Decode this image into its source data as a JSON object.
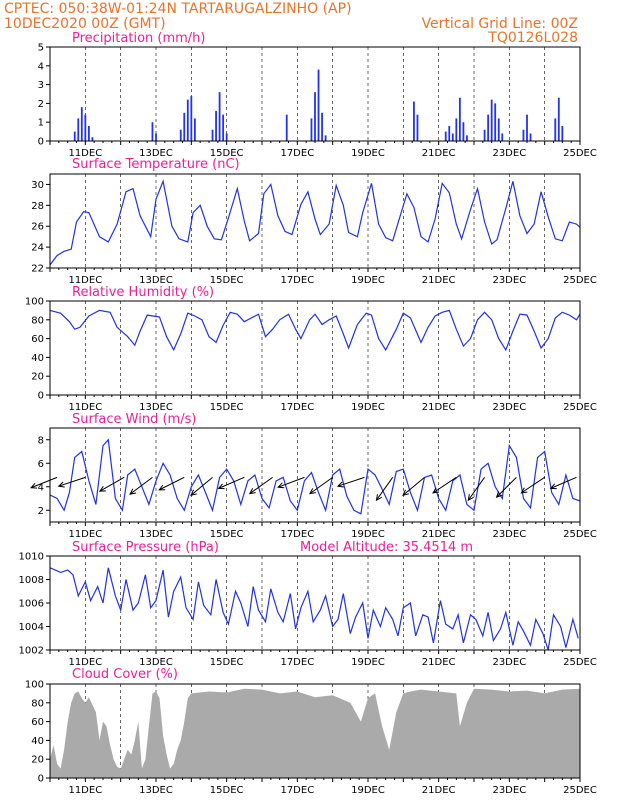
{
  "header": {
    "line1_left": "CPTEC:   050:38W-01:24N   TARTARUGALZINHO (AP)",
    "line2_left": "10DEC2020 00Z (GMT)",
    "line2_right": "Vertical Grid Line: 00Z",
    "line3_right": "TQ0126L028"
  },
  "colors": {
    "header": "#e8732a",
    "title": "#e8209a",
    "line": "#2233dd",
    "bar": "#2233ee",
    "cloud": "#aaaaaa"
  },
  "chart_data": [
    {
      "type": "bar",
      "title": "Precipitation (mm/h)",
      "ylim": [
        0,
        5
      ],
      "yticks": [
        0,
        1,
        2,
        3,
        4,
        5
      ],
      "xticks": [
        "11DEC",
        "13DEC",
        "15DEC",
        "17DEC",
        "19DEC",
        "21DEC",
        "23DEC",
        "25DEC"
      ],
      "x_days": [
        0.7,
        0.8,
        0.9,
        1.0,
        1.1,
        1.2,
        2.9,
        3.0,
        3.7,
        3.8,
        3.9,
        4.0,
        4.1,
        4.6,
        4.7,
        4.8,
        4.9,
        5.0,
        6.7,
        7.4,
        7.5,
        7.6,
        7.7,
        7.8,
        10.3,
        10.4,
        11.2,
        11.3,
        11.4,
        11.5,
        11.6,
        11.7,
        11.8,
        12.3,
        12.4,
        12.5,
        12.6,
        12.7,
        12.8,
        13.4,
        13.5,
        13.6,
        14.3,
        14.4,
        14.5
      ],
      "values": [
        0.5,
        1.2,
        1.8,
        1.4,
        0.8,
        0.2,
        1.0,
        0.4,
        0.6,
        1.5,
        2.2,
        2.4,
        1.2,
        0.6,
        1.6,
        2.6,
        1.4,
        0.4,
        1.4,
        1.2,
        2.6,
        3.8,
        1.5,
        0.3,
        2.1,
        1.4,
        0.5,
        0.8,
        0.4,
        1.2,
        2.3,
        1.0,
        0.3,
        0.6,
        1.4,
        2.2,
        2.0,
        1.2,
        0.4,
        0.6,
        1.4,
        0.4,
        1.2,
        2.3,
        0.8
      ]
    },
    {
      "type": "line",
      "title": "Surface Temperature (nC)",
      "ylim": [
        22,
        31
      ],
      "yticks": [
        22,
        24,
        26,
        28,
        30
      ],
      "xticks": [
        "11DEC",
        "13DEC",
        "15DEC",
        "17DEC",
        "19DEC",
        "21DEC",
        "23DEC",
        "25DEC"
      ],
      "x_days": [
        0.0,
        0.2,
        0.4,
        0.6,
        0.75,
        0.95,
        1.1,
        1.4,
        1.65,
        1.9,
        2.15,
        2.35,
        2.55,
        2.85,
        3.0,
        3.2,
        3.45,
        3.65,
        3.9,
        4.05,
        4.25,
        4.45,
        4.65,
        4.85,
        5.05,
        5.3,
        5.5,
        5.65,
        5.9,
        6.05,
        6.25,
        6.45,
        6.65,
        6.85,
        7.1,
        7.3,
        7.5,
        7.65,
        7.9,
        8.1,
        8.3,
        8.45,
        8.7,
        8.85,
        9.1,
        9.3,
        9.5,
        9.7,
        9.85,
        10.1,
        10.3,
        10.5,
        10.7,
        10.9,
        11.1,
        11.3,
        11.5,
        11.65,
        11.9,
        12.1,
        12.3,
        12.5,
        12.65,
        12.9,
        13.1,
        13.3,
        13.5,
        13.7,
        13.9,
        14.1,
        14.3,
        14.5,
        14.7,
        14.9,
        15.0
      ],
      "values": [
        22.3,
        23.2,
        23.6,
        23.8,
        26.4,
        27.4,
        27.3,
        25.0,
        24.5,
        26.2,
        29.3,
        29.6,
        27.0,
        25.0,
        28.6,
        30.3,
        26.0,
        24.8,
        24.5,
        27.3,
        28.0,
        26.0,
        24.8,
        24.7,
        26.8,
        29.6,
        26.5,
        24.6,
        25.3,
        29.1,
        30.0,
        27.0,
        25.5,
        25.2,
        28.1,
        29.3,
        26.7,
        25.2,
        26.2,
        29.9,
        28.0,
        25.4,
        25.0,
        27.3,
        30.1,
        26.2,
        24.9,
        24.6,
        26.3,
        29.1,
        27.8,
        25.0,
        24.5,
        26.7,
        30.1,
        29.2,
        26.2,
        24.8,
        27.6,
        29.6,
        26.4,
        24.3,
        24.7,
        27.7,
        30.3,
        27.0,
        25.3,
        26.2,
        29.3,
        26.9,
        24.8,
        24.6,
        26.4,
        26.2,
        25.9
      ]
    },
    {
      "type": "line",
      "title": "Relative Humidity (%)",
      "ylim": [
        0,
        100
      ],
      "yticks": [
        0,
        20,
        40,
        60,
        80,
        100
      ],
      "xticks": [
        "11DEC",
        "13DEC",
        "15DEC",
        "17DEC",
        "19DEC",
        "21DEC",
        "23DEC",
        "25DEC"
      ],
      "x_days": [
        0.0,
        0.3,
        0.55,
        0.7,
        0.85,
        1.1,
        1.4,
        1.7,
        1.9,
        2.2,
        2.4,
        2.55,
        2.75,
        3.1,
        3.3,
        3.5,
        3.7,
        3.9,
        4.1,
        4.3,
        4.5,
        4.7,
        4.9,
        5.1,
        5.3,
        5.5,
        5.7,
        5.9,
        6.1,
        6.3,
        6.5,
        6.75,
        6.95,
        7.1,
        7.35,
        7.5,
        7.7,
        7.9,
        8.1,
        8.3,
        8.45,
        8.7,
        8.95,
        9.1,
        9.3,
        9.5,
        9.8,
        10.0,
        10.2,
        10.5,
        10.7,
        10.9,
        11.1,
        11.3,
        11.5,
        11.7,
        11.9,
        12.1,
        12.3,
        12.5,
        12.7,
        12.9,
        13.1,
        13.3,
        13.5,
        13.7,
        13.9,
        14.1,
        14.3,
        14.5,
        14.7,
        14.9,
        15.0
      ],
      "values": [
        90,
        87,
        78,
        70,
        72,
        84,
        90,
        88,
        72,
        62,
        53,
        68,
        85,
        83,
        62,
        48,
        65,
        87,
        84,
        80,
        62,
        56,
        74,
        88,
        86,
        78,
        82,
        86,
        62,
        70,
        80,
        86,
        70,
        60,
        80,
        86,
        75,
        80,
        84,
        65,
        50,
        75,
        87,
        85,
        60,
        48,
        70,
        87,
        82,
        56,
        72,
        84,
        88,
        90,
        70,
        52,
        60,
        80,
        88,
        80,
        60,
        48,
        68,
        86,
        85,
        68,
        50,
        60,
        82,
        88,
        85,
        80,
        86
      ]
    },
    {
      "type": "line",
      "title": "Surface Wind (m/s)",
      "ylim": [
        1,
        9
      ],
      "yticks": [
        2,
        4,
        6,
        8
      ],
      "xticks": [
        "11DEC",
        "13DEC",
        "15DEC",
        "17DEC",
        "19DEC",
        "21DEC",
        "23DEC",
        "25DEC"
      ],
      "x_days": [
        0.0,
        0.2,
        0.4,
        0.55,
        0.7,
        0.9,
        1.1,
        1.3,
        1.5,
        1.65,
        1.85,
        2.05,
        2.2,
        2.4,
        2.6,
        2.8,
        3.0,
        3.2,
        3.4,
        3.6,
        3.8,
        4.0,
        4.2,
        4.4,
        4.6,
        4.8,
        5.0,
        5.2,
        5.4,
        5.6,
        5.8,
        6.0,
        6.2,
        6.4,
        6.6,
        6.8,
        7.0,
        7.2,
        7.4,
        7.6,
        7.8,
        8.0,
        8.2,
        8.4,
        8.6,
        8.8,
        9.0,
        9.2,
        9.4,
        9.6,
        9.8,
        10.0,
        10.2,
        10.4,
        10.6,
        10.8,
        11.0,
        11.2,
        11.4,
        11.6,
        11.8,
        12.0,
        12.2,
        12.4,
        12.6,
        12.8,
        13.0,
        13.2,
        13.4,
        13.6,
        13.8,
        14.0,
        14.2,
        14.4,
        14.6,
        14.8,
        15.0
      ],
      "values": [
        3.3,
        3.0,
        2.0,
        3.5,
        6.5,
        7.0,
        4.5,
        2.5,
        7.5,
        8.0,
        3.0,
        2.0,
        5.0,
        5.5,
        4.0,
        2.5,
        4.5,
        6.0,
        5.0,
        3.0,
        2.0,
        4.0,
        5.0,
        3.5,
        2.0,
        4.8,
        5.5,
        4.5,
        2.5,
        4.5,
        5.0,
        3.0,
        2.2,
        4.5,
        4.8,
        2.8,
        2.0,
        4.5,
        5.2,
        3.5,
        2.0,
        5.0,
        5.5,
        3.2,
        2.0,
        1.7,
        5.5,
        5.0,
        3.8,
        2.5,
        5.3,
        5.5,
        3.5,
        2.0,
        4.8,
        5.0,
        3.0,
        2.0,
        4.5,
        5.0,
        2.5,
        2.0,
        5.5,
        6.0,
        4.0,
        3.0,
        7.5,
        6.5,
        3.0,
        2.2,
        6.5,
        7.0,
        3.5,
        2.5,
        5.0,
        3.0,
        2.8
      ],
      "vector_days": [
        0.2,
        1.0,
        2.1,
        2.9,
        3.8,
        4.6,
        5.5,
        6.3,
        7.2,
        8.0,
        8.9,
        9.7,
        10.6,
        11.5,
        12.3,
        13.2,
        14.0,
        14.9
      ],
      "vector_u": [
        -1.0,
        -0.6,
        -0.7,
        -0.8,
        -0.6,
        -0.6,
        -0.7,
        -0.7,
        -0.8,
        -0.7,
        -0.6,
        -0.5,
        -0.6,
        -0.6,
        -0.5,
        -0.6,
        -0.6,
        -0.7
      ],
      "vector_v": [
        -0.4,
        -0.2,
        -0.4,
        -0.6,
        -0.3,
        -0.5,
        -0.3,
        -0.5,
        -0.3,
        -0.5,
        -0.2,
        -0.7,
        -0.5,
        -0.4,
        -0.7,
        -0.6,
        -0.4,
        -0.3
      ]
    },
    {
      "type": "line",
      "title": "Surface Pressure (hPa)",
      "subtitle": "Model Altitude: 35.4514  m",
      "ylim": [
        1002,
        1010
      ],
      "yticks": [
        1002,
        1004,
        1006,
        1008,
        1010
      ],
      "xticks": [
        "11DEC",
        "13DEC",
        "15DEC",
        "17DEC",
        "19DEC",
        "21DEC",
        "23DEC",
        "25DEC"
      ],
      "x_days": [
        0.0,
        0.15,
        0.3,
        0.5,
        0.65,
        0.8,
        1.0,
        1.15,
        1.35,
        1.5,
        1.65,
        1.85,
        2.0,
        2.15,
        2.35,
        2.5,
        2.7,
        2.85,
        3.0,
        3.2,
        3.35,
        3.5,
        3.7,
        3.85,
        4.05,
        4.2,
        4.35,
        4.55,
        4.7,
        4.9,
        5.05,
        5.25,
        5.4,
        5.6,
        5.75,
        5.9,
        6.1,
        6.25,
        6.45,
        6.6,
        6.8,
        6.95,
        7.1,
        7.3,
        7.45,
        7.65,
        7.8,
        8.0,
        8.15,
        8.3,
        8.5,
        8.65,
        8.85,
        9.0,
        9.15,
        9.35,
        9.5,
        9.7,
        9.85,
        10.0,
        10.2,
        10.35,
        10.55,
        10.7,
        10.85,
        11.05,
        11.2,
        11.4,
        11.55,
        11.7,
        11.9,
        12.05,
        12.25,
        12.4,
        12.55,
        12.75,
        12.9,
        13.1,
        13.25,
        13.4,
        13.6,
        13.75,
        13.95,
        14.1,
        14.25,
        14.45,
        14.6,
        14.8,
        14.95
      ],
      "values": [
        1009.0,
        1008.8,
        1008.6,
        1008.8,
        1008.4,
        1006.6,
        1007.8,
        1006.2,
        1007.4,
        1006.0,
        1009.0,
        1006.6,
        1005.4,
        1008.0,
        1005.4,
        1006.0,
        1008.4,
        1005.6,
        1006.2,
        1008.8,
        1004.8,
        1007.0,
        1008.2,
        1005.6,
        1004.6,
        1007.8,
        1005.8,
        1005.0,
        1008.0,
        1005.2,
        1004.2,
        1007.0,
        1006.0,
        1004.0,
        1007.4,
        1005.4,
        1004.4,
        1007.2,
        1005.2,
        1004.4,
        1006.8,
        1003.8,
        1005.6,
        1007.0,
        1004.4,
        1005.4,
        1006.6,
        1004.0,
        1004.6,
        1006.8,
        1003.4,
        1004.8,
        1006.0,
        1003.0,
        1005.4,
        1004.0,
        1005.6,
        1004.6,
        1003.2,
        1005.6,
        1006.0,
        1003.2,
        1005.0,
        1004.8,
        1002.6,
        1006.2,
        1004.2,
        1003.8,
        1005.0,
        1002.6,
        1005.0,
        1004.6,
        1003.2,
        1005.2,
        1002.8,
        1003.8,
        1005.2,
        1002.4,
        1004.4,
        1003.6,
        1002.4,
        1004.6,
        1003.4,
        1002.0,
        1005.0,
        1004.0,
        1002.2,
        1004.6,
        1003.0
      ]
    },
    {
      "type": "area",
      "title": "Cloud Cover (%)",
      "ylim": [
        0,
        100
      ],
      "yticks": [
        0,
        20,
        40,
        60,
        80,
        100
      ],
      "xticks": [
        "11DEC",
        "13DEC",
        "15DEC",
        "17DEC",
        "19DEC",
        "21DEC",
        "23DEC",
        "25DEC"
      ],
      "x_days": [
        0.0,
        0.1,
        0.2,
        0.3,
        0.4,
        0.5,
        0.6,
        0.7,
        0.8,
        0.9,
        1.0,
        1.1,
        1.2,
        1.3,
        1.4,
        1.5,
        1.6,
        1.7,
        1.8,
        1.9,
        2.0,
        2.1,
        2.2,
        2.3,
        2.4,
        2.5,
        2.6,
        2.7,
        2.8,
        2.9,
        3.0,
        3.1,
        3.2,
        3.3,
        3.4,
        3.5,
        3.6,
        3.7,
        3.8,
        3.9,
        4.0,
        4.5,
        5.0,
        5.5,
        6.0,
        6.5,
        7.0,
        7.5,
        8.0,
        8.5,
        8.8,
        9.0,
        9.2,
        9.4,
        9.6,
        9.8,
        10.0,
        10.2,
        10.5,
        11.0,
        11.5,
        11.6,
        11.8,
        12.0,
        12.5,
        13.0,
        13.5,
        14.0,
        14.5,
        15.0
      ],
      "values": [
        20,
        35,
        15,
        10,
        30,
        60,
        80,
        90,
        92,
        85,
        80,
        86,
        78,
        70,
        40,
        60,
        55,
        35,
        20,
        12,
        10,
        20,
        30,
        25,
        40,
        60,
        10,
        20,
        55,
        90,
        92,
        85,
        45,
        25,
        10,
        15,
        30,
        40,
        60,
        85,
        90,
        92,
        91,
        95,
        94,
        90,
        92,
        86,
        88,
        80,
        60,
        85,
        90,
        55,
        30,
        70,
        90,
        92,
        94,
        92,
        90,
        55,
        80,
        95,
        94,
        92,
        93,
        90,
        94,
        95
      ]
    }
  ]
}
